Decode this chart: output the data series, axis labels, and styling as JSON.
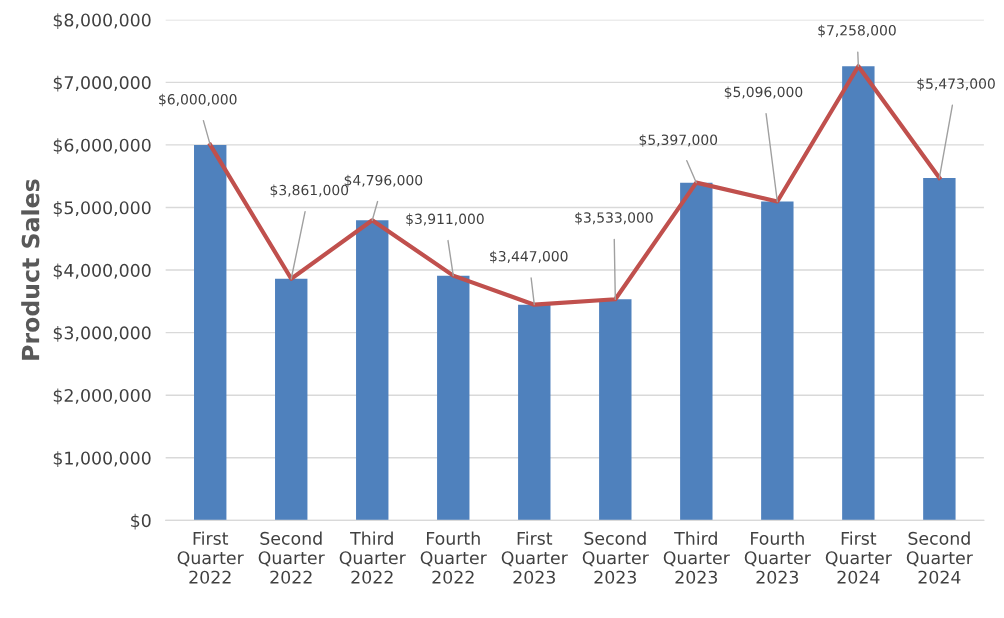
{
  "chart_data": {
    "type": "bar",
    "ylabel": "Product Sales",
    "categories": [
      "First\nQuarter\n2022",
      "Second\nQuarter\n2022",
      "Third\nQuarter\n2022",
      "Fourth\nQuarter\n2022",
      "First\nQuarter\n2023",
      "Second\nQuarter\n2023",
      "Third\nQuarter\n2023",
      "Fourth\nQuarter\n2023",
      "First\nQuarter\n2024",
      "Second\nQuarter\n2024"
    ],
    "series": [
      {
        "color": "#4f81bd",
        "values": [
          6000000,
          3861000,
          4796000,
          3911000,
          3447000,
          3533000,
          5397000,
          5096000,
          7258000,
          5473000
        ]
      },
      {
        "type": "line",
        "color": "#c0504d",
        "values": [
          6000000,
          3861000,
          4796000,
          3911000,
          3447000,
          3533000,
          5397000,
          5096000,
          7258000,
          5473000
        ],
        "value_labels": [
          "$6,000,000",
          "$3,861,000",
          "$4,796,000",
          "$3,911,000",
          "$3,447,000",
          "$3,533,000",
          "$5,397,000",
          "$5,096,000",
          "$7,258,000",
          "$5,473,000"
        ]
      }
    ],
    "ylim": [
      0,
      8000000
    ],
    "yticks": [
      {
        "value": 0,
        "label": "$0"
      },
      {
        "value": 1000000,
        "label": "$1,000,000"
      },
      {
        "value": 2000000,
        "label": "$2,000,000"
      },
      {
        "value": 3000000,
        "label": "$3,000,000"
      },
      {
        "value": 4000000,
        "label": "$4,000,000"
      },
      {
        "value": 5000000,
        "label": "$5,000,000"
      },
      {
        "value": 6000000,
        "label": "$6,000,000"
      },
      {
        "value": 7000000,
        "label": "$7,000,000"
      },
      {
        "value": 8000000,
        "label": "$8,000,000"
      }
    ],
    "grid": "y",
    "marker": "none",
    "line_style": "solid"
  }
}
